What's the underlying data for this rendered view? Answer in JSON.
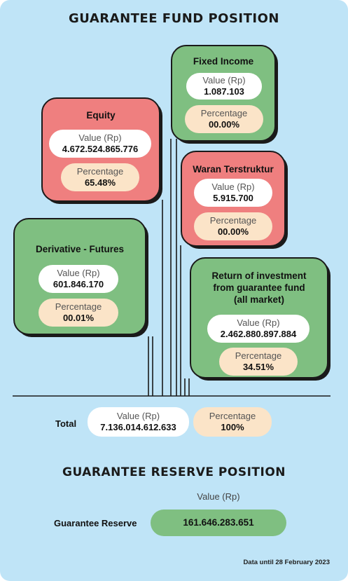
{
  "fund": {
    "title": "GUARANTEE FUND POSITION",
    "value_label": "Value (Rp)",
    "percentage_label": "Percentage",
    "fixed_income": {
      "name": "Fixed Income",
      "value": "1.087.103",
      "percentage": "00.00%"
    },
    "equity": {
      "name": "Equity",
      "value": "4.672.524.865.776",
      "percentage": "65.48%"
    },
    "waran": {
      "name": "Waran Terstruktur",
      "value": "5.915.700",
      "percentage": "00.00%"
    },
    "derivative": {
      "name": "Derivative - Futures",
      "value": "601.846.170",
      "percentage": "00.01%"
    },
    "return_inv": {
      "name_line1": "Return of investment",
      "name_line2": "from guarantee fund",
      "name_line3": "(all market)",
      "value": "2.462.880.897.884",
      "percentage": "34.51%"
    },
    "total": {
      "label": "Total",
      "value": "7.136.014.612.633",
      "percentage": "100%"
    }
  },
  "reserve": {
    "title": "GUARANTEE RESERVE POSITION",
    "value_header": "Value (Rp)",
    "label": "Guarantee Reserve",
    "value": "161.646.283.651"
  },
  "footer": {
    "note": "Data until 28 February 2023"
  },
  "colors": {
    "background": "#bfe4f7",
    "green": "#7fbf81",
    "red": "#ef7f7f",
    "peach": "#fbe4c8"
  }
}
